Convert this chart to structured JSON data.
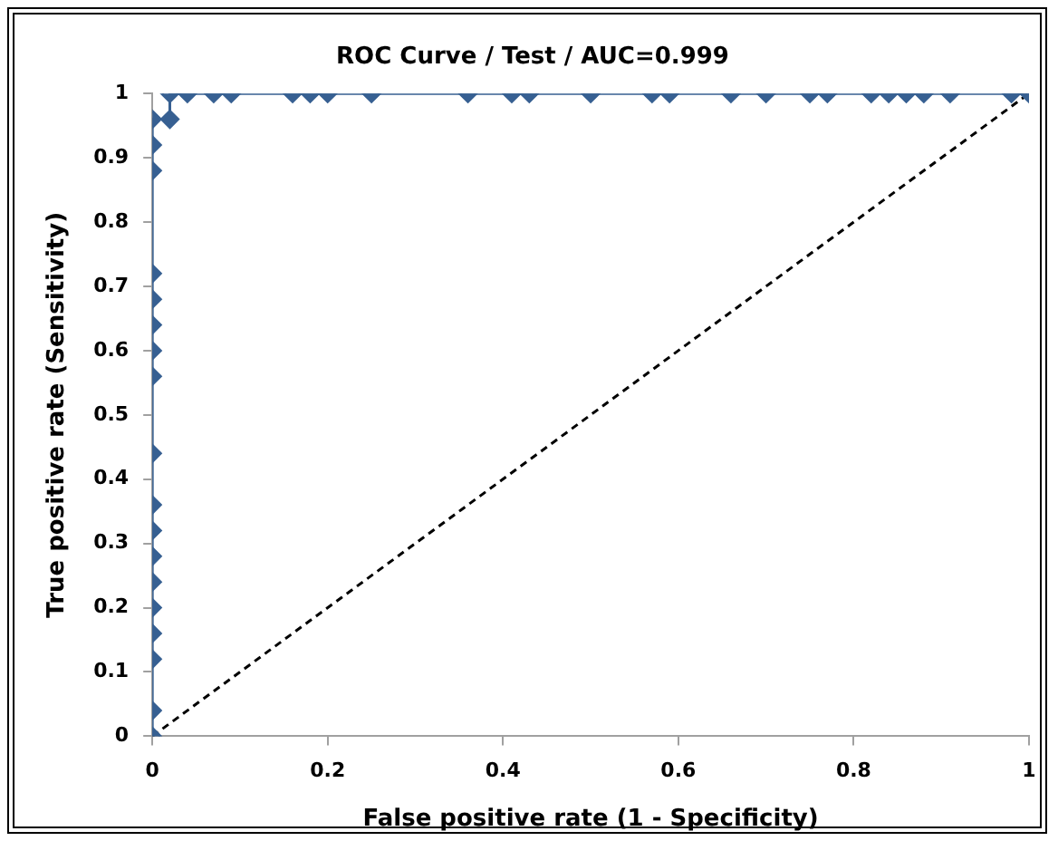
{
  "chart_data": {
    "type": "line",
    "title": "ROC Curve / Test / AUC=0.999",
    "xlabel": "False positive rate (1 - Specificity)",
    "ylabel": "True positive rate (Sensitivity)",
    "series": [
      {
        "color": "#376092",
        "marker": "diamond",
        "line_style": "solid",
        "x": [
          0,
          0,
          0,
          0,
          0,
          0,
          0,
          0,
          0,
          0,
          0,
          0,
          0,
          0,
          0,
          0,
          0,
          0,
          0.02,
          0.02,
          0.04,
          0.07,
          0.09,
          0.16,
          0.18,
          0.2,
          0.25,
          0.36,
          0.41,
          0.43,
          0.5,
          0.57,
          0.59,
          0.66,
          0.7,
          0.75,
          0.77,
          0.82,
          0.84,
          0.86,
          0.88,
          0.91,
          0.98,
          1
        ],
        "values": [
          0,
          0.04,
          0.12,
          0.16,
          0.2,
          0.24,
          0.28,
          0.32,
          0.36,
          0.44,
          0.56,
          0.6,
          0.64,
          0.68,
          0.72,
          0.88,
          0.92,
          0.96,
          0.96,
          1,
          1,
          1,
          1,
          1,
          1,
          1,
          1,
          1,
          1,
          1,
          1,
          1,
          1,
          1,
          1,
          1,
          1,
          1,
          1,
          1,
          1,
          1,
          1,
          1
        ]
      },
      {
        "color": "#000000",
        "marker": "none",
        "line_style": "dashed",
        "x": [
          0,
          1
        ],
        "values": [
          0,
          1
        ]
      }
    ],
    "xlim": [
      0,
      1
    ],
    "xticks": [
      0,
      0.2,
      0.4,
      0.6,
      0.8,
      1
    ],
    "ylim": [
      0,
      1
    ],
    "yticks": [
      0,
      0.1,
      0.2,
      0.3,
      0.4,
      0.5,
      0.6,
      0.7,
      0.8,
      0.9,
      1
    ],
    "grid": false,
    "legend": false
  }
}
